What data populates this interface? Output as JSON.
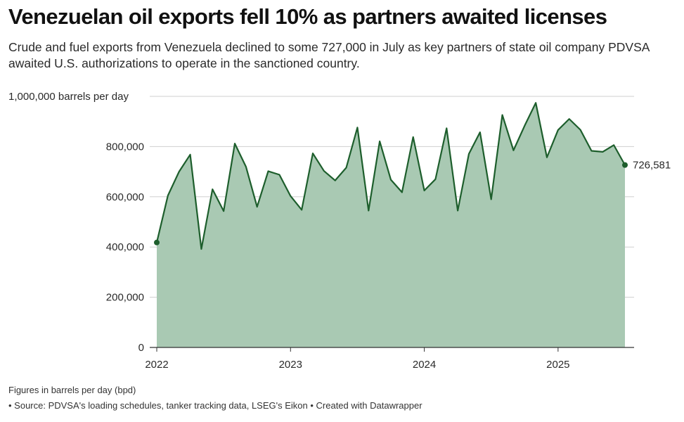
{
  "header": {
    "title": "Venezuelan oil exports fell 10% as partners awaited licenses",
    "subtitle": "Crude and fuel exports from Venezuela declined to some 727,000 in July as key partners of state oil company PDVSA awaited U.S. authorizations to operate in the sanctioned country."
  },
  "footer": {
    "note": "Figures in barrels per day (bpd)",
    "source": "• Source: PDVSA's loading schedules, tanker tracking data, LSEG's Eikon • Created with Datawrapper"
  },
  "colors": {
    "line": "#1d5e2c",
    "area": "#a9c9b3",
    "grid": "#cfcfcf",
    "axis": "#333333"
  },
  "chart_data": {
    "type": "area",
    "title": "Venezuelan oil exports fell 10% as partners awaited licenses",
    "ylabel": "barrels per day",
    "unit": "bpd",
    "ylim": [
      0,
      1000000
    ],
    "yticks": [
      0,
      200000,
      400000,
      600000,
      800000,
      1000000
    ],
    "ytick_labels": [
      "0",
      "200,000",
      "400,000",
      "600,000",
      "800,000",
      "1,000,000 barrels per day"
    ],
    "xticks": [
      2022,
      2023,
      2024,
      2025
    ],
    "xtick_labels": [
      "2022",
      "2023",
      "2024",
      "2025"
    ],
    "x_start": "2022-01",
    "x_end": "2025-07",
    "end_label": "726,581",
    "series": [
      {
        "name": "Crude and fuel exports",
        "x": [
          "2022-01",
          "2022-02",
          "2022-03",
          "2022-04",
          "2022-05",
          "2022-06",
          "2022-07",
          "2022-08",
          "2022-09",
          "2022-10",
          "2022-11",
          "2022-12",
          "2023-01",
          "2023-02",
          "2023-03",
          "2023-04",
          "2023-05",
          "2023-06",
          "2023-07",
          "2023-08",
          "2023-09",
          "2023-10",
          "2023-11",
          "2023-12",
          "2024-01",
          "2024-02",
          "2024-03",
          "2024-04",
          "2024-05",
          "2024-06",
          "2024-07",
          "2024-08",
          "2024-09",
          "2024-10",
          "2024-11",
          "2024-12",
          "2025-01",
          "2025-02",
          "2025-03",
          "2025-04",
          "2025-05",
          "2025-06",
          "2025-07"
        ],
        "values": [
          418000,
          605000,
          700000,
          768000,
          392000,
          630000,
          543000,
          812000,
          720000,
          560000,
          702000,
          688000,
          603000,
          548000,
          773000,
          703000,
          665000,
          716000,
          876000,
          545000,
          821000,
          668000,
          618000,
          838000,
          625000,
          670000,
          873000,
          545000,
          771000,
          857000,
          590000,
          926000,
          785000,
          883000,
          974000,
          757000,
          866000,
          910000,
          867000,
          783000,
          779000,
          806000,
          726581
        ]
      }
    ]
  }
}
